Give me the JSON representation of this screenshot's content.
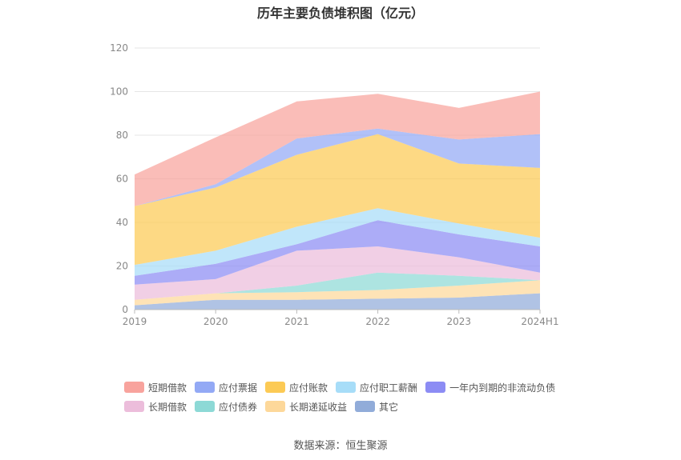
{
  "title": "历年主要负债堆积图（亿元）",
  "source_text": "数据来源：恒生聚源",
  "chart_data": {
    "type": "area",
    "stacked": true,
    "title": "历年主要负债堆积图（亿元）",
    "categories": [
      "2019",
      "2020",
      "2021",
      "2022",
      "2023",
      "2024H1"
    ],
    "ylim": [
      0,
      120
    ],
    "yticks": [
      0,
      20,
      40,
      60,
      80,
      100,
      120
    ],
    "grid": true,
    "legend_position": "bottom",
    "series": [
      {
        "name": "其它",
        "color": "#91acd9",
        "values": [
          2,
          4.5,
          4.5,
          5,
          5.5,
          7.5
        ]
      },
      {
        "name": "长期递延收益",
        "color": "#fdd89a",
        "values": [
          2.5,
          3,
          3.5,
          4,
          5.5,
          6
        ]
      },
      {
        "name": "应付债券",
        "color": "#8dd9d6",
        "values": [
          0,
          0,
          3,
          8,
          4.5,
          0
        ]
      },
      {
        "name": "长期借款",
        "color": "#ecbddb",
        "values": [
          7,
          6.5,
          16,
          12,
          8.5,
          3.5
        ]
      },
      {
        "name": "一年内到期的非流动负债",
        "color": "#8c8cf4",
        "values": [
          4,
          7,
          3,
          12,
          10.5,
          12
        ]
      },
      {
        "name": "应付职工薪酬",
        "color": "#a7ddf8",
        "values": [
          5,
          6,
          8,
          5.5,
          5,
          4
        ]
      },
      {
        "name": "应付账款",
        "color": "#fcca55",
        "values": [
          27,
          29,
          33,
          34,
          27.5,
          32
        ]
      },
      {
        "name": "应付票据",
        "color": "#93a9f5",
        "values": [
          0,
          1.5,
          7.5,
          2.5,
          11,
          15.5
        ]
      },
      {
        "name": "短期借款",
        "color": "#f8a39d",
        "values": [
          14.5,
          21.5,
          17,
          16,
          14.5,
          19.5
        ]
      }
    ]
  },
  "legend": {
    "row1": [
      {
        "name": "短期借款",
        "color": "#f8a39d"
      },
      {
        "name": "应付票据",
        "color": "#93a9f5"
      },
      {
        "name": "应付账款",
        "color": "#fcca55"
      },
      {
        "name": "应付职工薪酬",
        "color": "#a7ddf8"
      },
      {
        "name": "一年内到期的非流动负债",
        "color": "#8c8cf4"
      }
    ],
    "row2": [
      {
        "name": "长期借款",
        "color": "#ecbddb"
      },
      {
        "name": "应付债券",
        "color": "#8dd9d6"
      },
      {
        "name": "长期递延收益",
        "color": "#fdd89a"
      },
      {
        "name": "其它",
        "color": "#91acd9"
      }
    ]
  }
}
